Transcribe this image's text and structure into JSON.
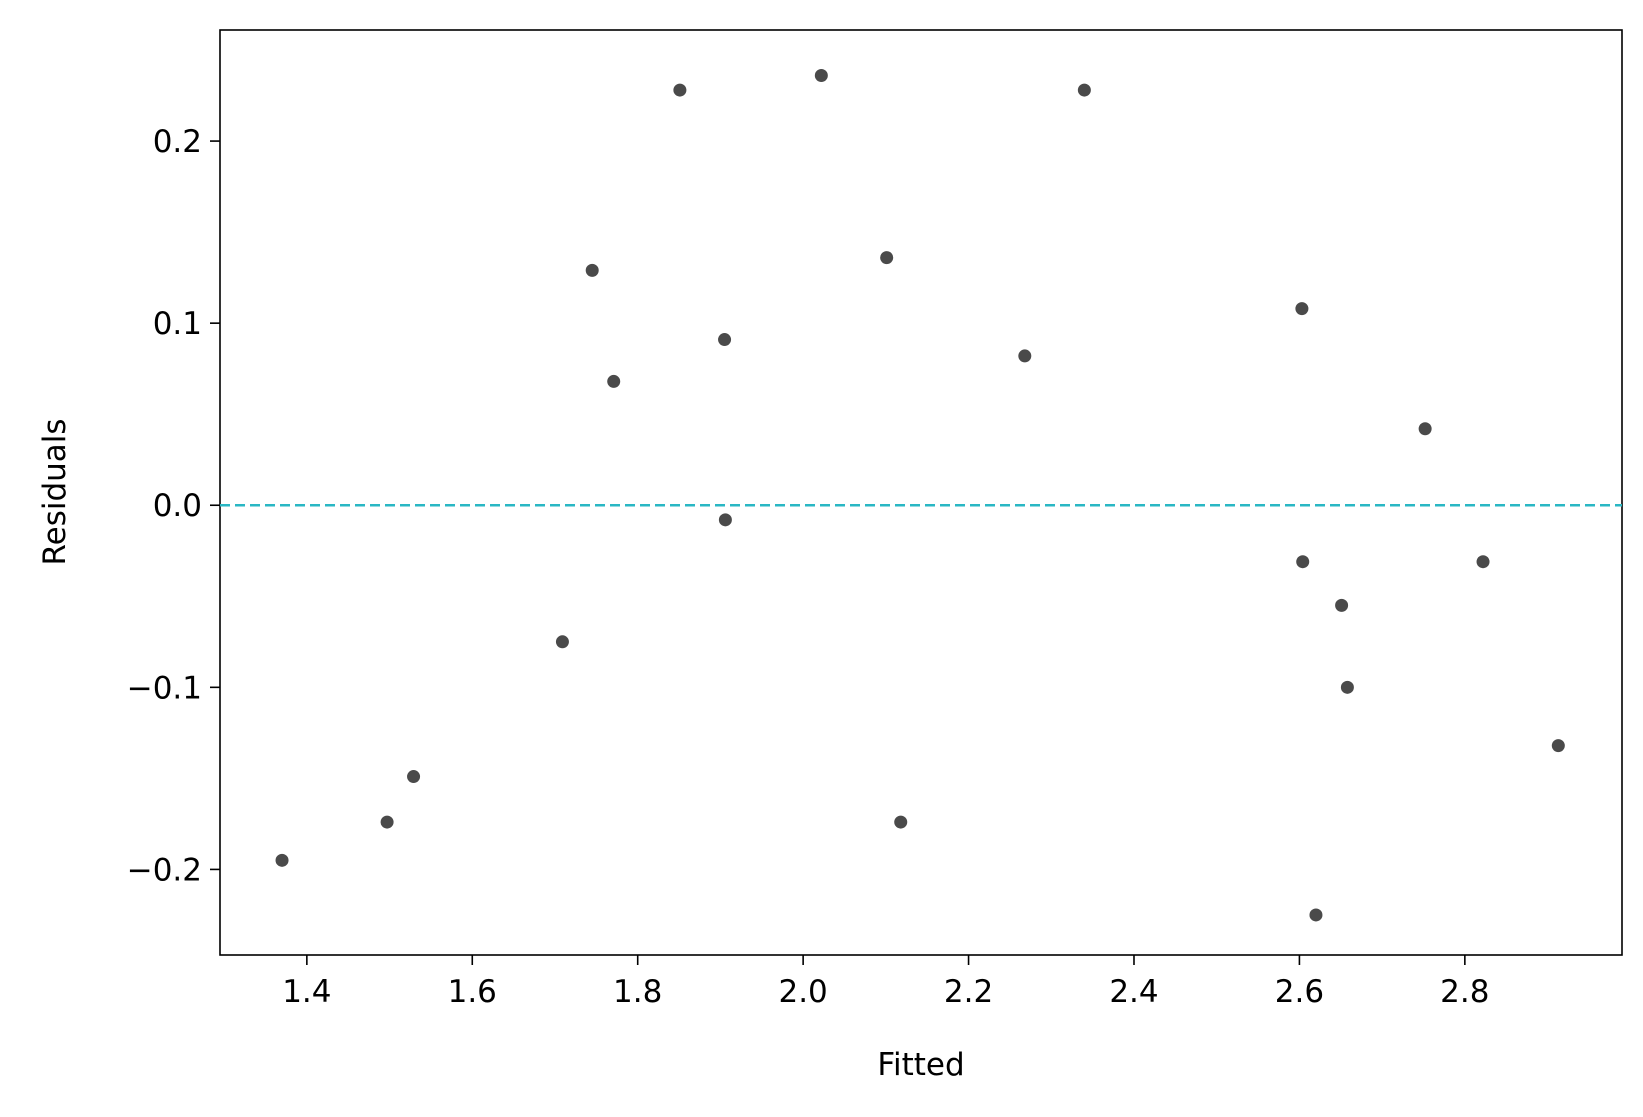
{
  "chart_data": {
    "type": "scatter",
    "title": "",
    "xlabel": "Fitted",
    "ylabel": "Residuals",
    "xlim": [
      1.295,
      2.99
    ],
    "ylim": [
      -0.247,
      0.261
    ],
    "xticks": [
      1.4,
      1.6,
      1.8,
      2.0,
      2.2,
      2.4,
      2.6,
      2.8
    ],
    "xtick_labels": [
      "1.4",
      "1.6",
      "1.8",
      "2.0",
      "2.2",
      "2.4",
      "2.6",
      "2.8"
    ],
    "yticks": [
      -0.2,
      -0.1,
      0.0,
      0.1,
      0.2
    ],
    "ytick_labels": [
      "−0.2",
      "−0.1",
      "0.0",
      "0.1",
      "0.2"
    ],
    "grid": false,
    "reference_line": {
      "y": 0.0,
      "style": "dashed",
      "color": "#2ab7c4"
    },
    "point_color": "#4a4a4a",
    "series": [
      {
        "x": [
          1.37,
          1.497,
          1.529,
          1.709,
          1.745,
          1.771,
          1.851,
          1.905,
          1.906,
          2.022,
          2.101,
          2.118,
          2.268,
          2.34,
          2.603,
          2.604,
          2.62,
          2.651,
          2.658,
          2.752,
          2.822,
          2.913
        ],
        "y": [
          -0.195,
          -0.174,
          -0.149,
          -0.075,
          0.129,
          0.068,
          0.228,
          0.091,
          -0.008,
          0.236,
          0.136,
          -0.174,
          0.082,
          0.228,
          0.108,
          -0.031,
          -0.225,
          -0.055,
          -0.1,
          0.042,
          -0.031,
          -0.132
        ]
      }
    ]
  }
}
